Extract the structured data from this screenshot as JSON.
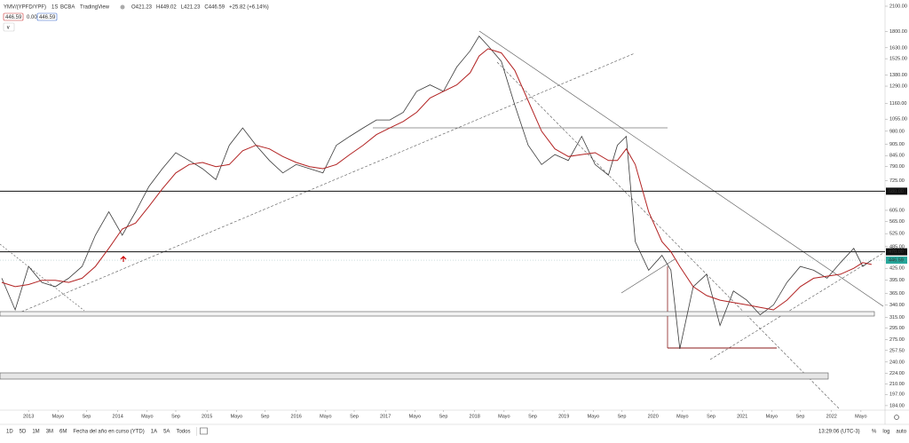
{
  "header": {
    "symbol": "YMV/(YPFD/YPF)",
    "interval": "1S",
    "exchange": "BCBA",
    "source": "TradingView",
    "ohlc": [
      "O421.23",
      "H449.02",
      "L421.23",
      "C446.59",
      "+25.82 (+6.14%)"
    ],
    "quotes": [
      "446.59",
      "0.00",
      "446.59"
    ],
    "collapse": "∨"
  },
  "toolbar": {
    "ranges": [
      "1D",
      "5D",
      "1M",
      "3M",
      "6M",
      "Fecha del año en curso (YTD)",
      "1A",
      "5A",
      "Todos"
    ],
    "clock": "13:29:06 (UTC-3)",
    "options": [
      "%",
      "log",
      "auto"
    ]
  },
  "chart_data": {
    "type": "line",
    "log_scale": true,
    "xlim": [
      2012.68,
      2022.58
    ],
    "ylim": [
      179,
      2181
    ],
    "xticks": [
      2013,
      {
        "value": 2013.33,
        "label": "Mayo"
      },
      {
        "value": 2013.65,
        "label": "Sep"
      },
      2014,
      {
        "value": 2014.33,
        "label": "Mayo"
      },
      {
        "value": 2014.65,
        "label": "Sep"
      },
      2015,
      {
        "value": 2015.33,
        "label": "Mayo"
      },
      {
        "value": 2015.65,
        "label": "Sep"
      },
      2016,
      {
        "value": 2016.33,
        "label": "Mayo"
      },
      {
        "value": 2016.65,
        "label": "Sep"
      },
      2017,
      {
        "value": 2017.33,
        "label": "Mayo"
      },
      {
        "value": 2017.65,
        "label": "Sep"
      },
      2018,
      {
        "value": 2018.33,
        "label": "Mayo"
      },
      {
        "value": 2018.65,
        "label": "Sep"
      },
      2019,
      {
        "value": 2019.33,
        "label": "Mayo"
      },
      {
        "value": 2019.65,
        "label": "Sep"
      },
      2020,
      {
        "value": 2020.33,
        "label": "Mayo"
      },
      {
        "value": 2020.65,
        "label": "Sep"
      },
      2021,
      {
        "value": 2021.33,
        "label": "Mayo"
      },
      {
        "value": 2021.65,
        "label": "Sep"
      },
      2022,
      {
        "value": 2022.33,
        "label": "Mayo"
      }
    ],
    "yticks": [
      {
        "value": 2100,
        "label": "2100.00"
      },
      {
        "value": 1800,
        "label": "1800.00"
      },
      {
        "value": 1630,
        "label": "1630.00"
      },
      {
        "value": 1525,
        "label": "1525.00"
      },
      {
        "value": 1380,
        "label": "1380.00"
      },
      {
        "value": 1290,
        "label": "1290.00"
      },
      {
        "value": 1160,
        "label": "1160.00"
      },
      {
        "value": 1055,
        "label": "1055.00"
      },
      {
        "value": 980,
        "label": "980.00"
      },
      {
        "value": 905,
        "label": "905.00"
      },
      {
        "value": 845,
        "label": "845.00"
      },
      {
        "value": 790,
        "label": "790.00"
      },
      {
        "value": 725,
        "label": "725.00"
      },
      {
        "value": 605,
        "label": "605.00"
      },
      {
        "value": 565,
        "label": "565.00"
      },
      {
        "value": 525,
        "label": "525.00"
      },
      {
        "value": 485,
        "label": "485.00"
      },
      {
        "value": 425,
        "label": "425.00"
      },
      {
        "value": 395,
        "label": "395.00"
      },
      {
        "value": 365,
        "label": "365.00"
      },
      {
        "value": 340,
        "label": "340.00"
      },
      {
        "value": 315,
        "label": "315.00"
      },
      {
        "value": 295,
        "label": "295.00"
      },
      {
        "value": 275,
        "label": "275.00"
      },
      {
        "value": 257.5,
        "label": "257.50"
      },
      {
        "value": 240,
        "label": "240.00"
      },
      {
        "value": 224,
        "label": "224.00"
      },
      {
        "value": 210,
        "label": "210.00"
      },
      {
        "value": 197,
        "label": "197.00"
      },
      {
        "value": 184,
        "label": "184.00"
      }
    ],
    "levels": [
      {
        "value": 680,
        "label": "680.00"
      },
      {
        "value": 470,
        "label": "470.00"
      }
    ],
    "last_price": {
      "value": 446.59,
      "label": "446.59"
    },
    "x": [
      2012.7,
      2012.85,
      2013.0,
      2013.15,
      2013.3,
      2013.45,
      2013.6,
      2013.75,
      2013.9,
      2014.05,
      2014.2,
      2014.35,
      2014.5,
      2014.65,
      2014.8,
      2014.95,
      2015.1,
      2015.25,
      2015.4,
      2015.55,
      2015.7,
      2015.85,
      2016.0,
      2016.15,
      2016.3,
      2016.45,
      2016.6,
      2016.75,
      2016.9,
      2017.05,
      2017.2,
      2017.35,
      2017.5,
      2017.65,
      2017.8,
      2017.95,
      2018.05,
      2018.15,
      2018.3,
      2018.45,
      2018.6,
      2018.75,
      2018.9,
      2019.05,
      2019.2,
      2019.35,
      2019.5,
      2019.6,
      2019.7,
      2019.8,
      2019.95,
      2020.1,
      2020.2,
      2020.3,
      2020.45,
      2020.6,
      2020.75,
      2020.9,
      2021.05,
      2021.2,
      2021.35,
      2021.5,
      2021.65,
      2021.8,
      2021.95,
      2022.1,
      2022.25,
      2022.35,
      2022.45
    ],
    "series": [
      {
        "color": "#3a3a3a",
        "values": [
          400,
          330,
          430,
          390,
          380,
          400,
          430,
          520,
          600,
          520,
          600,
          700,
          780,
          860,
          820,
          780,
          730,
          900,
          1000,
          900,
          820,
          760,
          800,
          780,
          760,
          900,
          950,
          1000,
          1050,
          1050,
          1100,
          1250,
          1300,
          1250,
          1450,
          1600,
          1750,
          1650,
          1500,
          1150,
          900,
          800,
          850,
          820,
          950,
          800,
          750,
          900,
          950,
          500,
          420,
          460,
          420,
          260,
          380,
          410,
          300,
          370,
          350,
          320,
          340,
          390,
          430,
          420,
          400,
          440,
          480,
          430,
          447
        ]
      },
      {
        "color": "#b22222",
        "values": [
          390,
          380,
          385,
          395,
          395,
          390,
          400,
          430,
          480,
          540,
          560,
          620,
          690,
          760,
          800,
          810,
          790,
          800,
          870,
          900,
          880,
          840,
          810,
          790,
          780,
          800,
          850,
          900,
          960,
          1000,
          1040,
          1100,
          1200,
          1250,
          1300,
          1400,
          1550,
          1620,
          1580,
          1420,
          1180,
          980,
          880,
          840,
          850,
          860,
          820,
          820,
          880,
          800,
          600,
          500,
          470,
          430,
          380,
          360,
          350,
          345,
          340,
          335,
          330,
          350,
          380,
          400,
          405,
          410,
          425,
          440,
          435
        ]
      }
    ]
  }
}
